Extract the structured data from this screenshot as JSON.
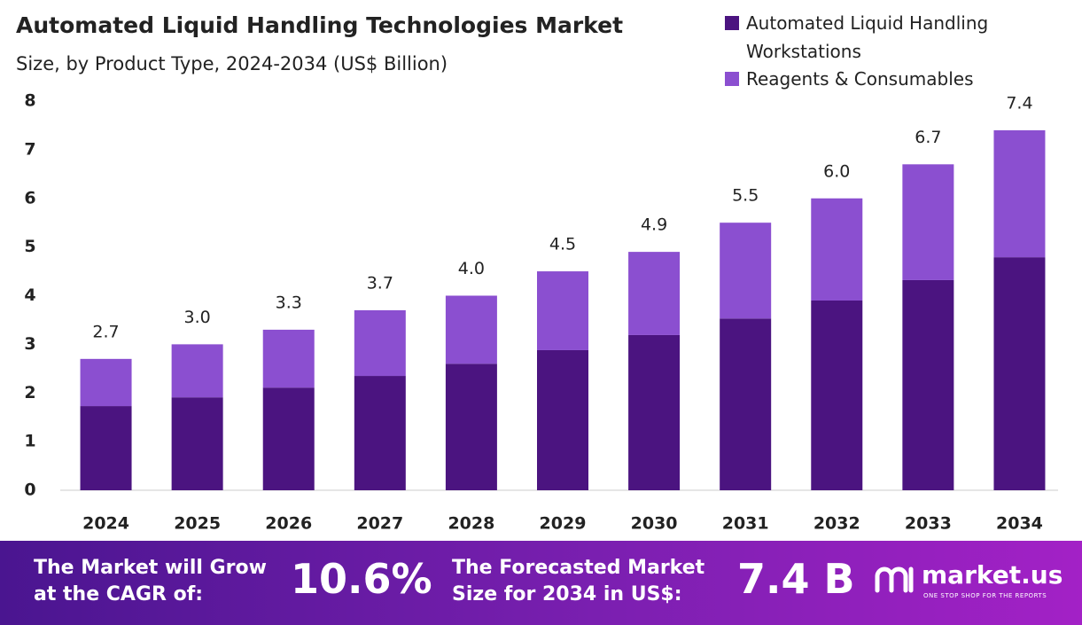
{
  "chart_data": {
    "type": "stacked-bar",
    "title": "Automated Liquid Handling Technologies Market",
    "subtitle": "Size, by Product Type, 2024-2034 (US$ Billion)",
    "categories": [
      "2024",
      "2025",
      "2026",
      "2027",
      "2028",
      "2029",
      "2030",
      "2031",
      "2032",
      "2033",
      "2034"
    ],
    "series": [
      {
        "name": "Automated Liquid Handling Workstations",
        "color": "#4b1480",
        "values": [
          1.73,
          1.91,
          2.11,
          2.35,
          2.6,
          2.88,
          3.19,
          3.53,
          3.9,
          4.32,
          4.79
        ]
      },
      {
        "name": "Reagents & Consumables",
        "color": "#8b4fd0",
        "values": [
          0.97,
          1.09,
          1.19,
          1.35,
          1.4,
          1.62,
          1.71,
          1.97,
          2.1,
          2.38,
          2.61
        ]
      }
    ],
    "totals": [
      2.7,
      3.0,
      3.3,
      3.7,
      4.0,
      4.5,
      4.9,
      5.5,
      6.0,
      6.7,
      7.4
    ],
    "total_labels": [
      "2.7",
      "3.0",
      "3.3",
      "3.7",
      "4.0",
      "4.5",
      "4.9",
      "5.5",
      "6.0",
      "6.7",
      "7.4"
    ],
    "ylim": [
      0,
      8
    ],
    "yticks": [
      0,
      1,
      2,
      3,
      4,
      5,
      6,
      7,
      8
    ],
    "grid": false
  },
  "footer": {
    "cagr_text": "The Market will Grow at the CAGR of:",
    "cagr_value": "10.6%",
    "forecast_text": "The Forecasted Market Size for 2034 in US$:",
    "forecast_value": "7.4 B",
    "brand": "market.us",
    "tagline": "ONE STOP SHOP FOR THE REPORTS"
  }
}
